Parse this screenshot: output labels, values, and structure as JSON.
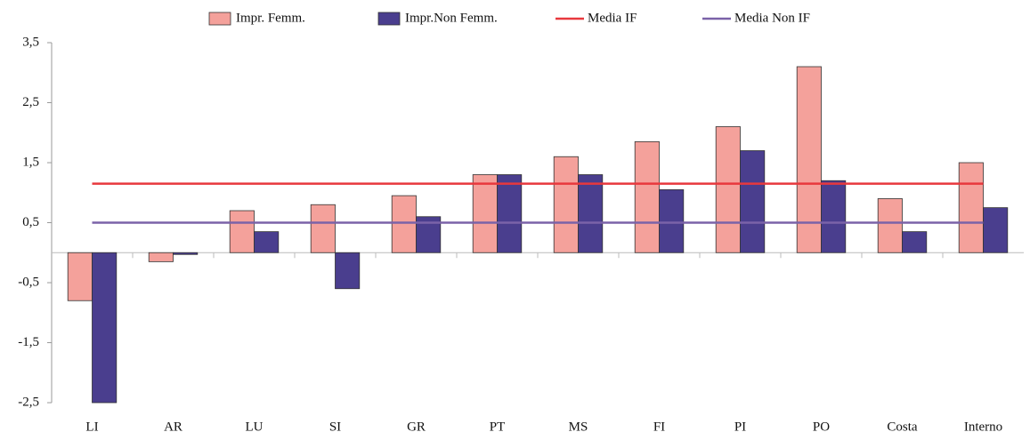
{
  "chart_data": {
    "type": "bar",
    "categories": [
      "LI",
      "AR",
      "LU",
      "SI",
      "GR",
      "PT",
      "MS",
      "FI",
      "PI",
      "PO",
      "Costa",
      "Interno"
    ],
    "series": [
      {
        "name": "Impr. Femm.",
        "type": "bar",
        "color": "#f4a19b",
        "values": [
          -0.8,
          -0.15,
          0.7,
          0.8,
          0.95,
          1.3,
          1.6,
          1.85,
          2.1,
          3.1,
          0.9,
          1.5
        ]
      },
      {
        "name": "Impr.Non Femm.",
        "type": "bar",
        "color": "#4a3e8e",
        "values": [
          -2.5,
          -0.03,
          0.35,
          -0.6,
          0.6,
          1.3,
          1.3,
          1.05,
          1.7,
          1.2,
          0.35,
          0.75
        ]
      },
      {
        "name": "Media IF",
        "type": "line",
        "color": "#e8383d",
        "values": [
          1.15,
          1.15,
          1.15,
          1.15,
          1.15,
          1.15,
          1.15,
          1.15,
          1.15,
          1.15,
          1.15,
          1.15
        ]
      },
      {
        "name": "Media Non IF",
        "type": "line",
        "color": "#7b62a8",
        "values": [
          0.5,
          0.5,
          0.5,
          0.5,
          0.5,
          0.5,
          0.5,
          0.5,
          0.5,
          0.5,
          0.5,
          0.5
        ]
      }
    ],
    "ylim": [
      -2.5,
      3.5
    ],
    "yticks": [
      {
        "value": 3.5,
        "label": "3,5"
      },
      {
        "value": 2.5,
        "label": "2,5"
      },
      {
        "value": 1.5,
        "label": "1,5"
      },
      {
        "value": 0.5,
        "label": "0,5"
      },
      {
        "value": -0.5,
        "label": "-0,5"
      },
      {
        "value": -1.5,
        "label": "-1,5"
      },
      {
        "value": -2.5,
        "label": "-2,5"
      }
    ],
    "grid": false,
    "legend": "top"
  }
}
